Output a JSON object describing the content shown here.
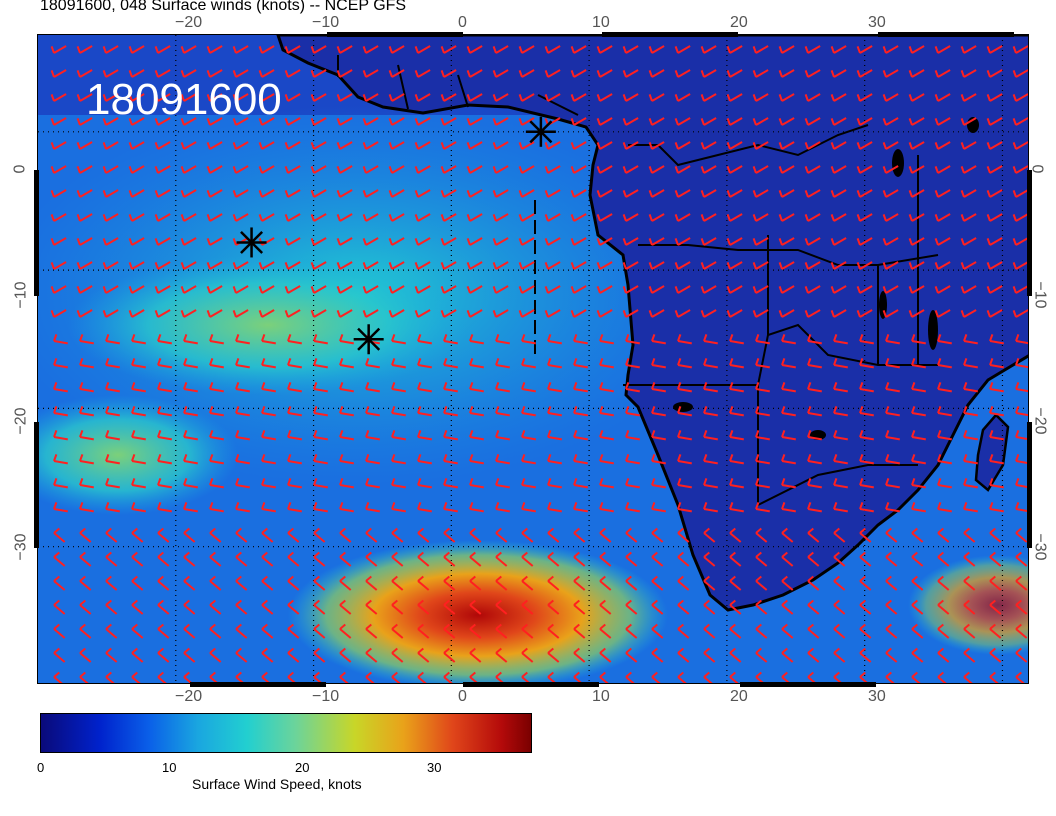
{
  "header": {
    "title": "18091600, 048 Surface winds (knots) -- NCEP GFS"
  },
  "map": {
    "run_label": "18091600",
    "projection": "lat-lon",
    "lon_range": [
      -30,
      42
    ],
    "lat_range": [
      -40,
      7
    ],
    "grid_lines": "dotted",
    "top_lon_ticks": [
      "−20",
      "−10",
      "0",
      "10",
      "20",
      "30"
    ],
    "bottom_lon_ticks": [
      "−20",
      "−10",
      "0",
      "10",
      "20",
      "30"
    ],
    "left_lat_ticks": [
      "0",
      "−10",
      "−20",
      "−30"
    ],
    "right_lat_ticks": [
      "0",
      "−10",
      "−20",
      "−30"
    ],
    "barb_color": "#ff2020",
    "coastline_color": "#000000",
    "storm_markers": [
      {
        "symbol": "asterisk",
        "lon": 6.5,
        "lat": 0.0
      },
      {
        "symbol": "asterisk",
        "lon": -14.5,
        "lat": -8.0
      },
      {
        "symbol": "asterisk",
        "lon": -6.0,
        "lat": -15.0
      }
    ]
  },
  "colorbar": {
    "label": "Surface Wind Speed, knots",
    "ticks": [
      "0",
      "10",
      "20",
      "30"
    ],
    "range": [
      0,
      37
    ],
    "colors": [
      "#0a0a7a",
      "#0022cc",
      "#0a5fe8",
      "#1aa6e0",
      "#22cfd0",
      "#6cd49a",
      "#c8d628",
      "#e9a21a",
      "#e0461a",
      "#b40a0a",
      "#7a0000"
    ]
  }
}
